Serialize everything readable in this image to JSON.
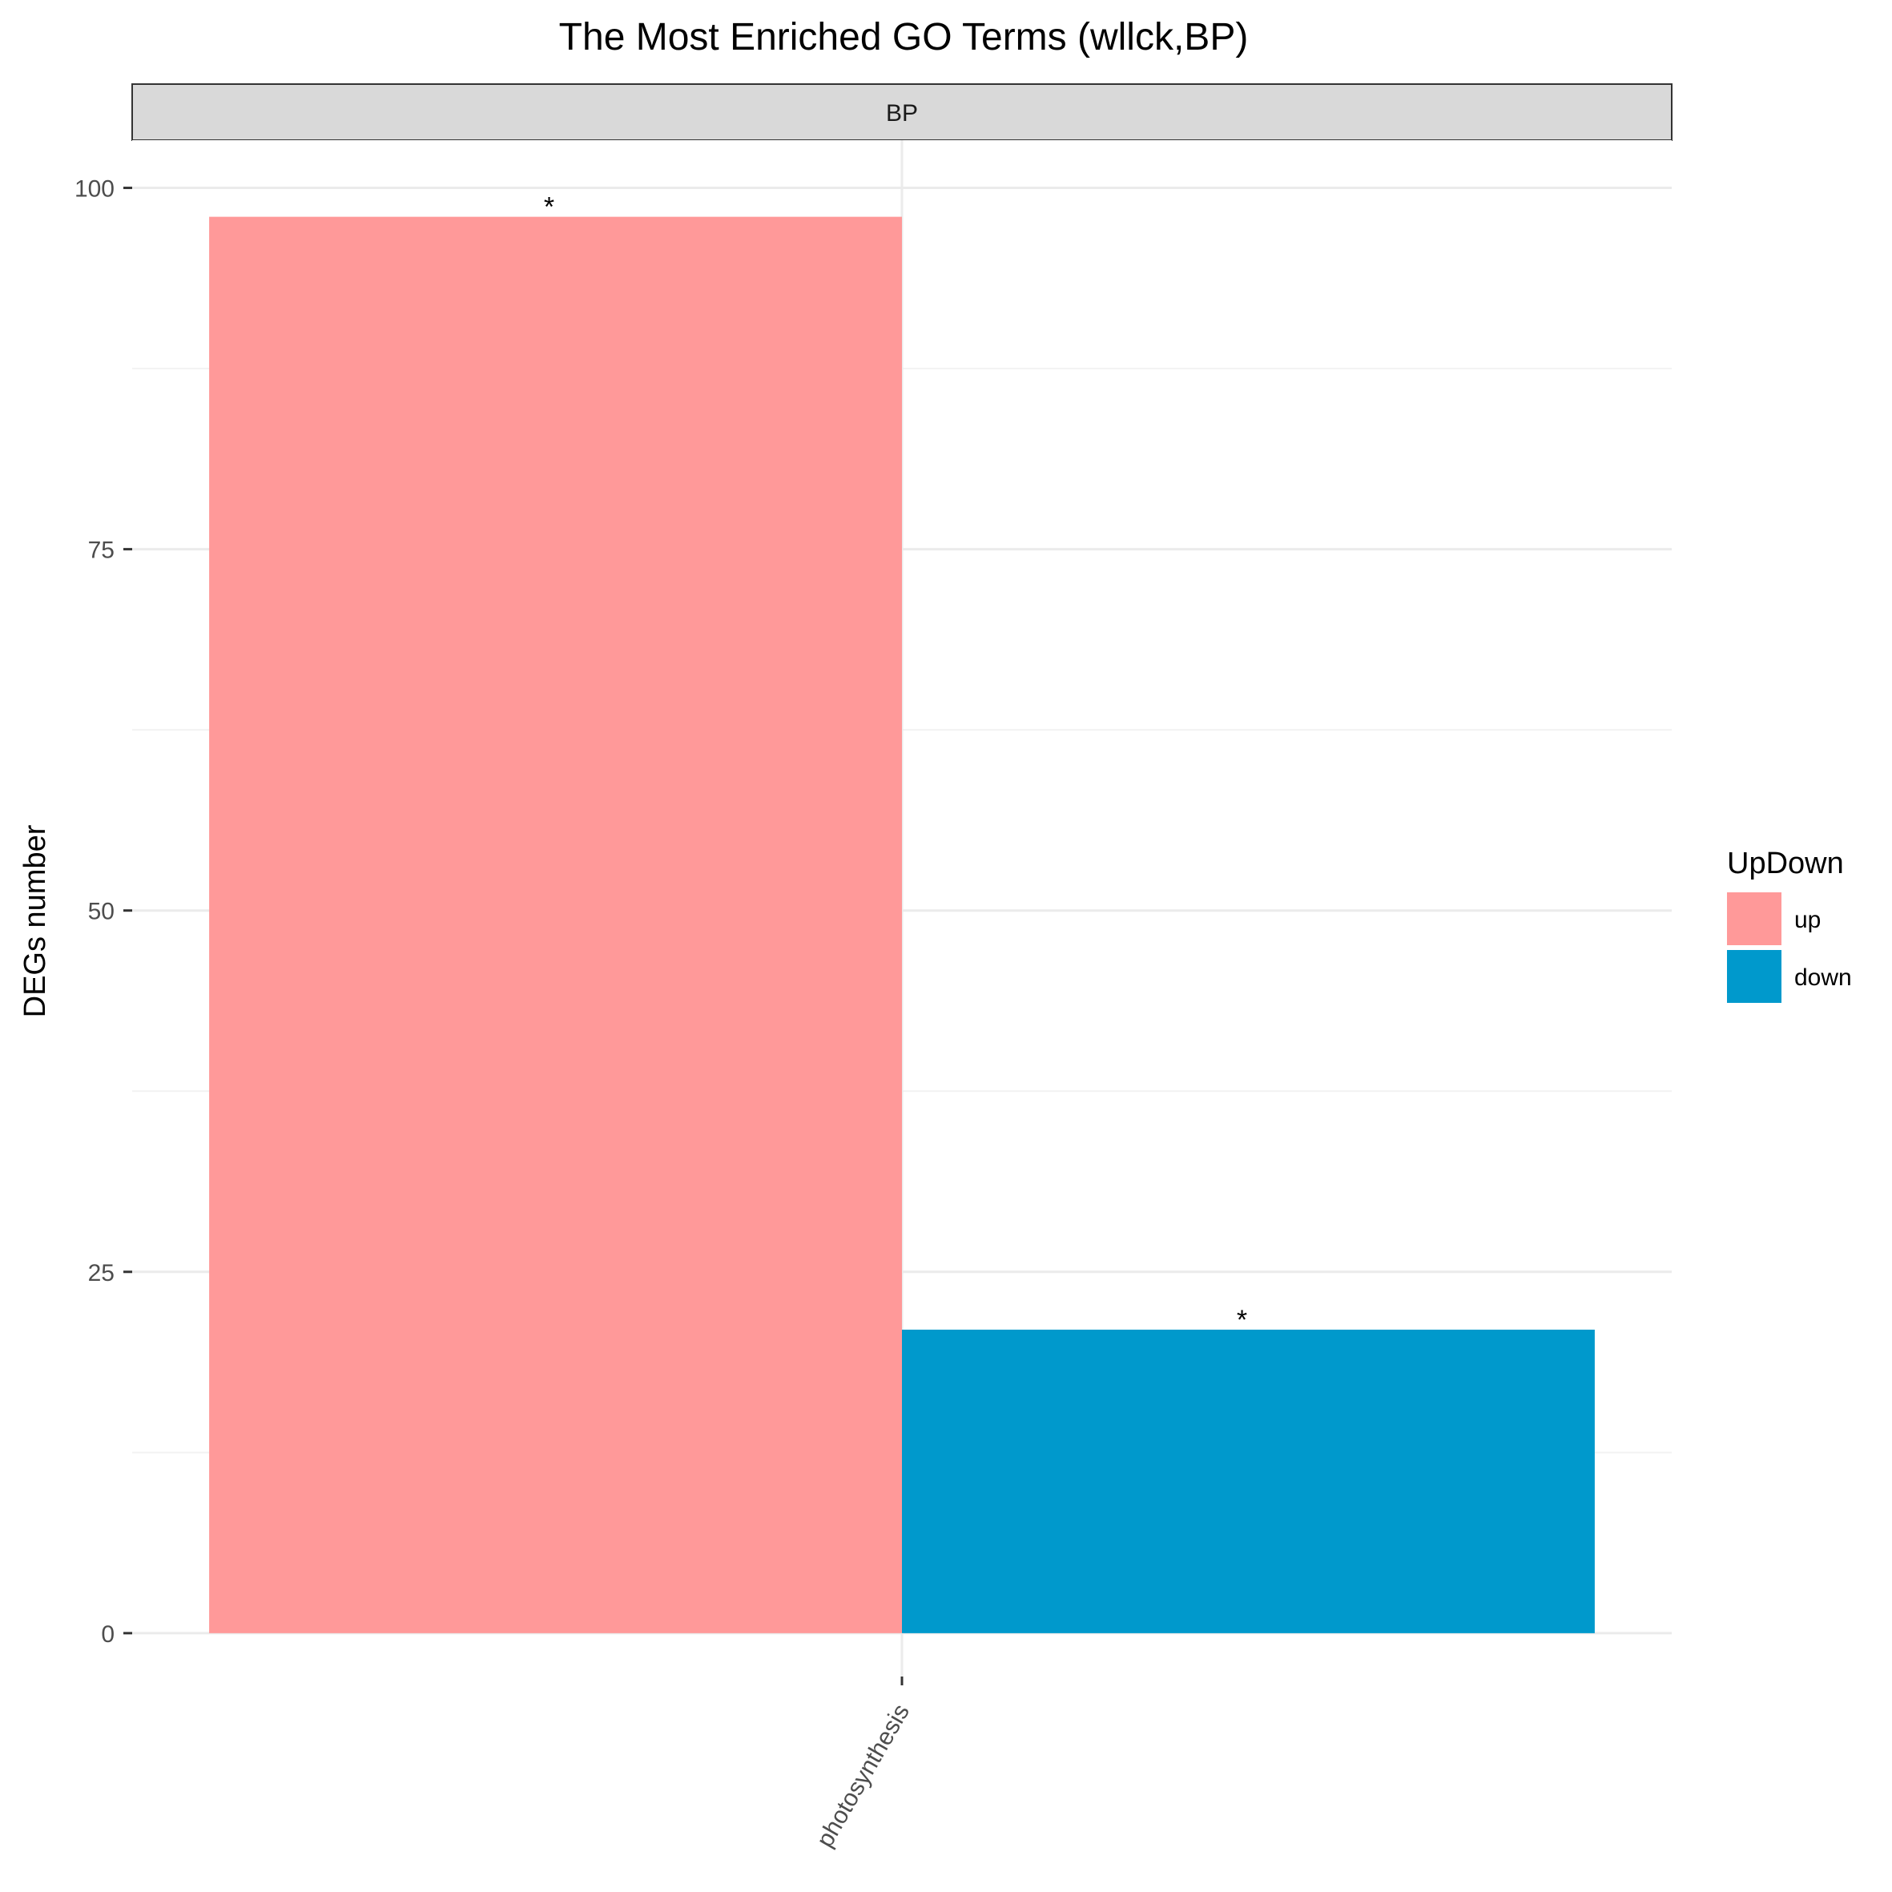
{
  "chart_data": {
    "type": "bar",
    "title": "The Most Enriched GO Terms (wllck,BP)",
    "facet": "BP",
    "categories": [
      "photosynthesis"
    ],
    "ylabel": "DEGs number",
    "xlabel": "",
    "ylim": [
      -3,
      103.3
    ],
    "yticks": [
      0,
      25,
      50,
      75,
      100
    ],
    "grid": true,
    "legend": {
      "title": "UpDown",
      "position": "right"
    },
    "series": [
      {
        "name": "up",
        "color": "#FF9999",
        "values": [
          98
        ],
        "labels": [
          "*"
        ]
      },
      {
        "name": "down",
        "color": "#0099CC",
        "values": [
          21
        ],
        "labels": [
          "*"
        ]
      }
    ]
  }
}
